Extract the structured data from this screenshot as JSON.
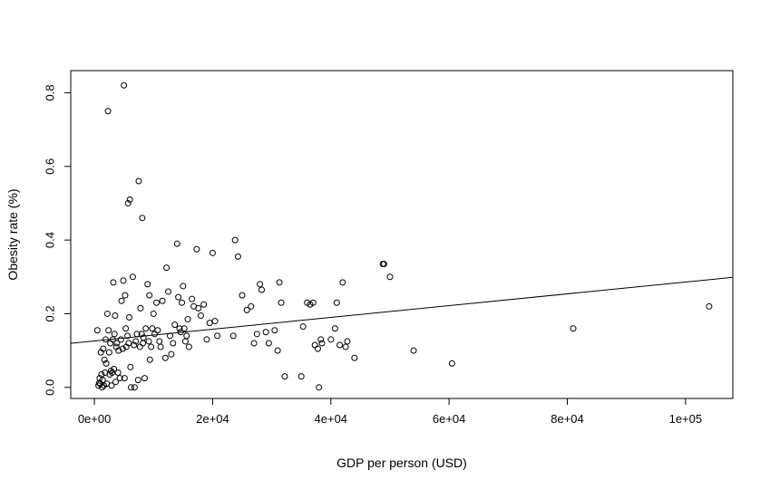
{
  "chart_data": {
    "type": "scatter",
    "title": "",
    "xlabel": "GDP per person (USD)",
    "ylabel": "Obesity rate (%)",
    "xlim": [
      -4000,
      108000
    ],
    "ylim": [
      -0.03,
      0.86
    ],
    "x_ticks": [
      0,
      20000,
      40000,
      60000,
      80000,
      100000
    ],
    "x_tick_labels": [
      "0e+00",
      "2e+04",
      "4e+04",
      "6e+04",
      "8e+04",
      "1e+05"
    ],
    "y_ticks": [
      0.0,
      0.2,
      0.4,
      0.6,
      0.8
    ],
    "y_tick_labels": [
      "0.0",
      "0.2",
      "0.4",
      "0.6",
      "0.8"
    ],
    "grid": false,
    "legend": "none",
    "marker": "open-circle",
    "regression_line": {
      "intercept": 0.126,
      "slope": 1.6e-06
    },
    "points": [
      [
        500,
        0.155
      ],
      [
        700,
        0.005
      ],
      [
        800,
        0.012
      ],
      [
        900,
        0.025
      ],
      [
        1000,
        0.01
      ],
      [
        1100,
        0.095
      ],
      [
        1200,
        0.035
      ],
      [
        1300,
        0.0
      ],
      [
        1400,
        0.02
      ],
      [
        1500,
        0.105
      ],
      [
        1600,
        0.005
      ],
      [
        1700,
        0.075
      ],
      [
        1800,
        0.04
      ],
      [
        1900,
        0.13
      ],
      [
        2000,
        0.065
      ],
      [
        2100,
        0.01
      ],
      [
        2200,
        0.2
      ],
      [
        2300,
        0.75
      ],
      [
        2400,
        0.155
      ],
      [
        2500,
        0.095
      ],
      [
        2600,
        0.035
      ],
      [
        2700,
        0.12
      ],
      [
        2800,
        0.045
      ],
      [
        2900,
        0.005
      ],
      [
        3000,
        0.04
      ],
      [
        3100,
        0.13
      ],
      [
        3200,
        0.285
      ],
      [
        3300,
        0.05
      ],
      [
        3400,
        0.145
      ],
      [
        3500,
        0.195
      ],
      [
        3600,
        0.015
      ],
      [
        3700,
        0.11
      ],
      [
        3800,
        0.12
      ],
      [
        4000,
        0.04
      ],
      [
        4100,
        0.1
      ],
      [
        4300,
        0.025
      ],
      [
        4500,
        0.13
      ],
      [
        4600,
        0.235
      ],
      [
        4800,
        0.105
      ],
      [
        4900,
        0.29
      ],
      [
        5000,
        0.82
      ],
      [
        5100,
        0.025
      ],
      [
        5200,
        0.25
      ],
      [
        5300,
        0.16
      ],
      [
        5400,
        0.11
      ],
      [
        5600,
        0.14
      ],
      [
        5700,
        0.5
      ],
      [
        5800,
        0.12
      ],
      [
        5900,
        0.19
      ],
      [
        6000,
        0.51
      ],
      [
        6100,
        0.055
      ],
      [
        6200,
        0.0
      ],
      [
        6500,
        0.3
      ],
      [
        6700,
        0.115
      ],
      [
        6800,
        0.0
      ],
      [
        7000,
        0.125
      ],
      [
        7200,
        0.145
      ],
      [
        7400,
        0.02
      ],
      [
        7500,
        0.56
      ],
      [
        7700,
        0.11
      ],
      [
        7800,
        0.215
      ],
      [
        8000,
        0.145
      ],
      [
        8100,
        0.46
      ],
      [
        8200,
        0.12
      ],
      [
        8300,
        0.135
      ],
      [
        8500,
        0.025
      ],
      [
        8700,
        0.16
      ],
      [
        9000,
        0.28
      ],
      [
        9200,
        0.125
      ],
      [
        9300,
        0.25
      ],
      [
        9400,
        0.075
      ],
      [
        9600,
        0.11
      ],
      [
        9800,
        0.16
      ],
      [
        10000,
        0.2
      ],
      [
        10200,
        0.145
      ],
      [
        10500,
        0.23
      ],
      [
        10700,
        0.155
      ],
      [
        11000,
        0.125
      ],
      [
        11200,
        0.11
      ],
      [
        11500,
        0.235
      ],
      [
        12000,
        0.08
      ],
      [
        12200,
        0.325
      ],
      [
        12500,
        0.26
      ],
      [
        12800,
        0.14
      ],
      [
        13000,
        0.09
      ],
      [
        13300,
        0.12
      ],
      [
        13600,
        0.17
      ],
      [
        14000,
        0.39
      ],
      [
        14200,
        0.245
      ],
      [
        14400,
        0.16
      ],
      [
        14600,
        0.15
      ],
      [
        14800,
        0.23
      ],
      [
        15000,
        0.275
      ],
      [
        15200,
        0.16
      ],
      [
        15400,
        0.125
      ],
      [
        15600,
        0.14
      ],
      [
        15800,
        0.185
      ],
      [
        16000,
        0.11
      ],
      [
        16500,
        0.24
      ],
      [
        16800,
        0.22
      ],
      [
        17300,
        0.375
      ],
      [
        17600,
        0.215
      ],
      [
        18000,
        0.195
      ],
      [
        18500,
        0.225
      ],
      [
        19000,
        0.13
      ],
      [
        19500,
        0.175
      ],
      [
        20000,
        0.365
      ],
      [
        20400,
        0.18
      ],
      [
        20800,
        0.14
      ],
      [
        23500,
        0.14
      ],
      [
        23800,
        0.4
      ],
      [
        24300,
        0.355
      ],
      [
        25000,
        0.25
      ],
      [
        25800,
        0.21
      ],
      [
        26500,
        0.22
      ],
      [
        27000,
        0.12
      ],
      [
        27500,
        0.145
      ],
      [
        28000,
        0.28
      ],
      [
        28300,
        0.265
      ],
      [
        29000,
        0.15
      ],
      [
        29500,
        0.12
      ],
      [
        30500,
        0.155
      ],
      [
        31000,
        0.1
      ],
      [
        31300,
        0.285
      ],
      [
        31600,
        0.23
      ],
      [
        32200,
        0.03
      ],
      [
        35000,
        0.03
      ],
      [
        35300,
        0.165
      ],
      [
        36000,
        0.23
      ],
      [
        36500,
        0.225
      ],
      [
        37000,
        0.23
      ],
      [
        37300,
        0.115
      ],
      [
        37800,
        0.105
      ],
      [
        38000,
        0.0
      ],
      [
        38300,
        0.13
      ],
      [
        38500,
        0.12
      ],
      [
        40000,
        0.13
      ],
      [
        40700,
        0.16
      ],
      [
        41000,
        0.23
      ],
      [
        41500,
        0.115
      ],
      [
        42000,
        0.285
      ],
      [
        42500,
        0.11
      ],
      [
        42800,
        0.125
      ],
      [
        44000,
        0.08
      ],
      [
        48800,
        0.335
      ],
      [
        49000,
        0.335
      ],
      [
        50000,
        0.3
      ],
      [
        54000,
        0.1
      ],
      [
        60500,
        0.065
      ],
      [
        81000,
        0.16
      ],
      [
        104000,
        0.22
      ]
    ]
  }
}
